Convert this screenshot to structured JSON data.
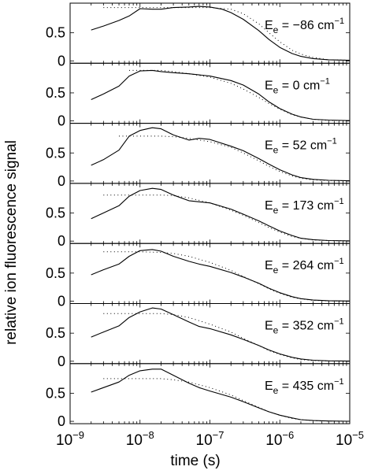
{
  "chart_data": {
    "type": "line",
    "xlabel": "time (s)",
    "ylabel": "relative ion fluorescence signal",
    "xscale": "log",
    "xlim": [
      1e-09,
      1e-05
    ],
    "ylim": [
      0,
      1
    ],
    "x_tick_labels": [
      {
        "base": "10",
        "exp": "−9"
      },
      {
        "base": "10",
        "exp": "−8"
      },
      {
        "base": "10",
        "exp": "−7"
      },
      {
        "base": "10",
        "exp": "−6"
      },
      {
        "base": "10",
        "exp": "−5"
      }
    ],
    "y_tick_labels": [
      "0",
      "0.5"
    ],
    "panels": [
      {
        "label": {
          "main": "E",
          "sub": "e",
          "value": " = −86 cm",
          "sup": "−1"
        },
        "measured": {
          "x": [
            2e-09,
            3e-09,
            5e-09,
            7e-09,
            1e-08,
            1.5e-08,
            2e-08,
            3e-08,
            5e-08,
            7e-08,
            1e-07,
            1.5e-07,
            2e-07,
            3e-07,
            5e-07,
            7e-07,
            1e-06,
            1.5e-06,
            2e-06,
            3e-06,
            5e-06,
            1e-05
          ],
          "y": [
            0.55,
            0.62,
            0.72,
            0.8,
            0.93,
            0.92,
            0.92,
            0.95,
            0.96,
            0.97,
            0.96,
            0.92,
            0.86,
            0.74,
            0.54,
            0.38,
            0.24,
            0.13,
            0.08,
            0.04,
            0.02,
            0.01
          ]
        },
        "fit": {
          "x": [
            3e-09,
            5e-09,
            7e-09,
            1e-08,
            2e-08,
            3e-08,
            5e-08,
            1e-07,
            2e-07,
            3e-07,
            5e-07,
            7e-07,
            1e-06,
            1.5e-06,
            2e-06,
            3e-06,
            5e-06,
            1e-05
          ],
          "y": [
            0.95,
            0.95,
            0.95,
            0.95,
            0.95,
            0.95,
            0.95,
            0.95,
            0.92,
            0.84,
            0.66,
            0.5,
            0.34,
            0.19,
            0.12,
            0.06,
            0.02,
            0.01
          ]
        }
      },
      {
        "label": {
          "main": "E",
          "sub": "e",
          "value": " = 0 cm",
          "sup": "−1"
        },
        "measured": {
          "x": [
            2e-09,
            3e-09,
            5e-09,
            7e-09,
            1e-08,
            1.5e-08,
            2e-08,
            3e-08,
            5e-08,
            1e-07,
            2e-07,
            3e-07,
            5e-07,
            7e-07,
            1e-06,
            1.5e-06,
            2e-06,
            3e-06,
            5e-06,
            1e-05
          ],
          "y": [
            0.38,
            0.48,
            0.62,
            0.8,
            0.89,
            0.9,
            0.88,
            0.86,
            0.84,
            0.8,
            0.72,
            0.64,
            0.48,
            0.34,
            0.22,
            0.12,
            0.07,
            0.03,
            0.015,
            0.005
          ]
        },
        "fit": {
          "x": [
            7e-09,
            1e-08,
            2e-08,
            3e-08,
            5e-08,
            1e-07,
            2e-07,
            3e-07,
            5e-07,
            7e-07,
            1e-06,
            1.5e-06,
            2e-06,
            3e-06,
            5e-06,
            1e-05
          ],
          "y": [
            0.9,
            0.9,
            0.9,
            0.88,
            0.84,
            0.78,
            0.67,
            0.57,
            0.42,
            0.31,
            0.21,
            0.11,
            0.07,
            0.03,
            0.01,
            0.005
          ]
        }
      },
      {
        "label": {
          "main": "E",
          "sub": "e",
          "value": " = 52 cm",
          "sup": "−1"
        },
        "measured": {
          "x": [
            2e-09,
            3e-09,
            5e-09,
            7e-09,
            1e-08,
            1.5e-08,
            2e-08,
            3e-08,
            5e-08,
            7e-08,
            1e-07,
            2e-07,
            3e-07,
            5e-07,
            7e-07,
            1e-06,
            1.5e-06,
            2e-06,
            3e-06,
            5e-06,
            1e-05
          ],
          "y": [
            0.28,
            0.38,
            0.55,
            0.8,
            0.9,
            0.95,
            0.93,
            0.82,
            0.73,
            0.76,
            0.74,
            0.62,
            0.54,
            0.4,
            0.3,
            0.2,
            0.11,
            0.06,
            0.03,
            0.012,
            0.004
          ]
        },
        "fit": {
          "x": [
            5e-09,
            7e-09,
            1e-08,
            2e-08,
            3e-08,
            5e-08,
            1e-07,
            2e-07,
            3e-07,
            5e-07,
            7e-07,
            1e-06,
            1.5e-06,
            2e-06,
            3e-06,
            5e-06,
            1e-05
          ],
          "y": [
            0.8,
            0.8,
            0.8,
            0.8,
            0.79,
            0.76,
            0.7,
            0.6,
            0.5,
            0.36,
            0.26,
            0.17,
            0.09,
            0.05,
            0.02,
            0.01,
            0.004
          ]
        }
      },
      {
        "label": {
          "main": "E",
          "sub": "e",
          "value": " = 173 cm",
          "sup": "−1"
        },
        "measured": {
          "x": [
            2e-09,
            3e-09,
            5e-09,
            7e-09,
            1e-08,
            1.5e-08,
            2e-08,
            3e-08,
            5e-08,
            7e-08,
            1e-07,
            2e-07,
            3e-07,
            5e-07,
            7e-07,
            1e-06,
            1.5e-06,
            2e-06,
            3e-06,
            5e-06,
            1e-05
          ],
          "y": [
            0.4,
            0.5,
            0.63,
            0.8,
            0.9,
            0.94,
            0.92,
            0.82,
            0.72,
            0.7,
            0.68,
            0.57,
            0.48,
            0.36,
            0.27,
            0.18,
            0.1,
            0.05,
            0.025,
            0.01,
            0.004
          ]
        },
        "fit": {
          "x": [
            3e-09,
            5e-09,
            7e-09,
            1e-08,
            2e-08,
            3e-08,
            5e-08,
            1e-07,
            2e-07,
            3e-07,
            5e-07,
            7e-07,
            1e-06,
            1.5e-06,
            2e-06,
            3e-06,
            5e-06,
            1e-05
          ],
          "y": [
            0.82,
            0.82,
            0.82,
            0.82,
            0.82,
            0.81,
            0.77,
            0.68,
            0.55,
            0.46,
            0.33,
            0.24,
            0.16,
            0.08,
            0.05,
            0.02,
            0.01,
            0.004
          ]
        }
      },
      {
        "label": {
          "main": "E",
          "sub": "e",
          "value": " = 264 cm",
          "sup": "−1"
        },
        "measured": {
          "x": [
            2e-09,
            3e-09,
            5e-09,
            7e-09,
            1e-08,
            1.5e-08,
            2e-08,
            3e-08,
            5e-08,
            7e-08,
            1e-07,
            2e-07,
            3e-07,
            5e-07,
            7e-07,
            1e-06,
            1.5e-06,
            2e-06,
            3e-06,
            5e-06,
            1e-05
          ],
          "y": [
            0.47,
            0.56,
            0.66,
            0.8,
            0.9,
            0.92,
            0.89,
            0.8,
            0.71,
            0.66,
            0.62,
            0.51,
            0.43,
            0.32,
            0.23,
            0.15,
            0.08,
            0.045,
            0.02,
            0.008,
            0.003
          ]
        },
        "fit": {
          "x": [
            3e-09,
            5e-09,
            7e-09,
            1e-08,
            2e-08,
            3e-08,
            5e-08,
            1e-07,
            2e-07,
            3e-07,
            5e-07,
            7e-07,
            1e-06,
            1.5e-06,
            2e-06,
            3e-06,
            5e-06,
            1e-05
          ],
          "y": [
            0.88,
            0.88,
            0.88,
            0.88,
            0.87,
            0.85,
            0.8,
            0.69,
            0.55,
            0.44,
            0.31,
            0.22,
            0.14,
            0.07,
            0.04,
            0.015,
            0.006,
            0.002
          ]
        }
      },
      {
        "label": {
          "main": "E",
          "sub": "e",
          "value": " = 352 cm",
          "sup": "−1"
        },
        "measured": {
          "x": [
            2e-09,
            3e-09,
            5e-09,
            7e-09,
            1e-08,
            1.5e-08,
            2e-08,
            3e-08,
            5e-08,
            7e-08,
            1e-07,
            2e-07,
            3e-07,
            5e-07,
            7e-07,
            1e-06,
            1.5e-06,
            2e-06,
            3e-06,
            5e-06,
            1e-05
          ],
          "y": [
            0.43,
            0.52,
            0.63,
            0.78,
            0.88,
            0.95,
            0.93,
            0.83,
            0.7,
            0.62,
            0.58,
            0.47,
            0.39,
            0.28,
            0.2,
            0.13,
            0.07,
            0.04,
            0.018,
            0.007,
            0.003
          ]
        },
        "fit": {
          "x": [
            3e-09,
            5e-09,
            7e-09,
            1e-08,
            2e-08,
            3e-08,
            5e-08,
            1e-07,
            2e-07,
            3e-07,
            5e-07,
            7e-07,
            1e-06,
            1.5e-06,
            2e-06,
            3e-06,
            5e-06,
            1e-05
          ],
          "y": [
            0.85,
            0.85,
            0.85,
            0.85,
            0.85,
            0.83,
            0.78,
            0.66,
            0.52,
            0.41,
            0.28,
            0.19,
            0.12,
            0.06,
            0.03,
            0.012,
            0.005,
            0.002
          ]
        }
      },
      {
        "label": {
          "main": "E",
          "sub": "e",
          "value": " = 435 cm",
          "sup": "−1"
        },
        "measured": {
          "x": [
            2e-09,
            3e-09,
            5e-09,
            7e-09,
            1e-08,
            1.5e-08,
            2e-08,
            3e-08,
            5e-08,
            7e-08,
            1e-07,
            2e-07,
            3e-07,
            5e-07,
            7e-07,
            1e-06,
            1.5e-06,
            2e-06,
            3e-06,
            5e-06,
            1e-05
          ],
          "y": [
            0.52,
            0.6,
            0.7,
            0.82,
            0.9,
            0.93,
            0.93,
            0.82,
            0.68,
            0.6,
            0.54,
            0.43,
            0.35,
            0.24,
            0.17,
            0.11,
            0.06,
            0.03,
            0.014,
            0.005,
            0.002
          ]
        },
        "fit": {
          "x": [
            3e-09,
            5e-09,
            7e-09,
            1e-08,
            2e-08,
            3e-08,
            5e-08,
            1e-07,
            2e-07,
            3e-07,
            5e-07,
            7e-07,
            1e-06,
            1.5e-06,
            2e-06,
            3e-06,
            5e-06,
            1e-05
          ],
          "y": [
            0.76,
            0.76,
            0.76,
            0.76,
            0.76,
            0.74,
            0.7,
            0.6,
            0.47,
            0.37,
            0.25,
            0.17,
            0.11,
            0.05,
            0.03,
            0.01,
            0.004,
            0.001
          ]
        }
      }
    ]
  }
}
